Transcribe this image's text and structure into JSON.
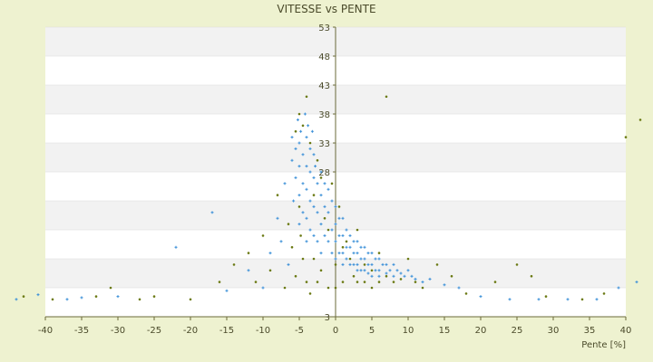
{
  "chart_data": {
    "type": "scatter",
    "title": "VITESSE vs PENTE",
    "xlabel": "Pente [%]",
    "ylabel": "",
    "xlim": [
      -40,
      40
    ],
    "ylim": [
      3,
      53
    ],
    "x_ticks": [
      -40,
      -35,
      -30,
      -25,
      -20,
      -15,
      -10,
      -5,
      0,
      5,
      10,
      15,
      20,
      25,
      30,
      35,
      40
    ],
    "y_ticks": [
      3,
      8,
      13,
      18,
      23,
      28,
      33,
      38,
      43,
      48,
      53
    ],
    "y_tick_labels_shown": [
      3,
      28,
      33,
      38,
      43,
      48,
      53
    ],
    "grid": "horizontal alternating bands",
    "series": [
      {
        "color": "#3a8fd8",
        "marker": "cross",
        "values": [
          [
            -44,
            6
          ],
          [
            -41,
            6.8
          ],
          [
            -37,
            6
          ],
          [
            -35,
            6.3
          ],
          [
            -30,
            6.5
          ],
          [
            -22,
            15
          ],
          [
            -17,
            21
          ],
          [
            -15,
            7.5
          ],
          [
            -12,
            11
          ],
          [
            -10,
            8
          ],
          [
            -9,
            14
          ],
          [
            -8,
            20
          ],
          [
            -7.5,
            16
          ],
          [
            -7,
            26
          ],
          [
            -6.5,
            12
          ],
          [
            -6,
            30
          ],
          [
            -6,
            34
          ],
          [
            -5.8,
            23
          ],
          [
            -5.5,
            32
          ],
          [
            -5.5,
            27
          ],
          [
            -5.2,
            37
          ],
          [
            -5,
            33
          ],
          [
            -5,
            29
          ],
          [
            -5,
            24
          ],
          [
            -5,
            19
          ],
          [
            -4.8,
            35
          ],
          [
            -4.5,
            31
          ],
          [
            -4.5,
            26
          ],
          [
            -4.5,
            21
          ],
          [
            -4.2,
            38
          ],
          [
            -4,
            34
          ],
          [
            -4,
            29
          ],
          [
            -4,
            25
          ],
          [
            -4,
            20
          ],
          [
            -4,
            16
          ],
          [
            -3.8,
            36
          ],
          [
            -3.5,
            32
          ],
          [
            -3.5,
            28
          ],
          [
            -3.5,
            23
          ],
          [
            -3.5,
            18
          ],
          [
            -3.2,
            35
          ],
          [
            -3,
            31
          ],
          [
            -3,
            27
          ],
          [
            -3,
            22
          ],
          [
            -3,
            17
          ],
          [
            -2.8,
            29
          ],
          [
            -2.5,
            26
          ],
          [
            -2.5,
            21
          ],
          [
            -2.5,
            16
          ],
          [
            -2,
            28
          ],
          [
            -2,
            24
          ],
          [
            -2,
            19
          ],
          [
            -2,
            14
          ],
          [
            -1.5,
            26
          ],
          [
            -1.5,
            22
          ],
          [
            -1.5,
            17
          ],
          [
            -1,
            25
          ],
          [
            -1,
            21
          ],
          [
            -1,
            16
          ],
          [
            -0.5,
            23
          ],
          [
            -0.5,
            18
          ],
          [
            -0.5,
            14
          ],
          [
            0,
            22
          ],
          [
            0,
            19
          ],
          [
            0,
            16
          ],
          [
            0,
            13
          ],
          [
            0.5,
            20
          ],
          [
            0.5,
            17
          ],
          [
            0.5,
            14
          ],
          [
            1,
            20
          ],
          [
            1,
            17
          ],
          [
            1,
            14
          ],
          [
            1,
            12
          ],
          [
            1.5,
            18
          ],
          [
            1.5,
            15
          ],
          [
            1.5,
            13
          ],
          [
            2,
            17
          ],
          [
            2,
            15
          ],
          [
            2,
            12
          ],
          [
            2.5,
            16
          ],
          [
            2.5,
            14
          ],
          [
            2.5,
            12
          ],
          [
            3,
            16
          ],
          [
            3,
            14
          ],
          [
            3,
            12
          ],
          [
            3,
            11
          ],
          [
            3.5,
            15
          ],
          [
            3.5,
            13
          ],
          [
            3.5,
            11
          ],
          [
            4,
            15
          ],
          [
            4,
            13
          ],
          [
            4,
            11
          ],
          [
            4.5,
            14
          ],
          [
            4.5,
            12
          ],
          [
            4.5,
            10.5
          ],
          [
            5,
            14
          ],
          [
            5,
            12
          ],
          [
            5,
            10
          ],
          [
            5.5,
            13
          ],
          [
            5.5,
            11
          ],
          [
            6,
            13
          ],
          [
            6,
            11
          ],
          [
            6,
            10
          ],
          [
            6.5,
            12
          ],
          [
            7,
            12
          ],
          [
            7,
            10.5
          ],
          [
            7.5,
            11
          ],
          [
            8,
            12
          ],
          [
            8,
            10
          ],
          [
            8.5,
            11
          ],
          [
            9,
            10.5
          ],
          [
            9.5,
            10
          ],
          [
            10,
            11
          ],
          [
            10.5,
            10
          ],
          [
            11,
            9.5
          ],
          [
            12,
            9
          ],
          [
            13,
            9.5
          ],
          [
            15,
            8.5
          ],
          [
            17,
            8
          ],
          [
            20,
            6.5
          ],
          [
            24,
            6
          ],
          [
            28,
            6
          ],
          [
            32,
            6
          ],
          [
            36,
            6
          ],
          [
            39,
            8
          ],
          [
            41.5,
            9
          ]
        ]
      },
      {
        "color": "#6b7a14",
        "marker": "dot",
        "values": [
          [
            -43,
            6.5
          ],
          [
            -39,
            6
          ],
          [
            -33,
            6.5
          ],
          [
            -31,
            8
          ],
          [
            -27,
            6
          ],
          [
            -25,
            6.5
          ],
          [
            -20,
            6
          ],
          [
            -16,
            9
          ],
          [
            -14,
            12
          ],
          [
            -12,
            14
          ],
          [
            -11,
            9
          ],
          [
            -10,
            17
          ],
          [
            -9,
            11
          ],
          [
            -8,
            24
          ],
          [
            -7,
            8
          ],
          [
            -6.5,
            19
          ],
          [
            -6,
            15
          ],
          [
            -5.5,
            35
          ],
          [
            -5.5,
            10
          ],
          [
            -5,
            38
          ],
          [
            -5,
            22
          ],
          [
            -4.8,
            17
          ],
          [
            -4.5,
            36
          ],
          [
            -4.5,
            13
          ],
          [
            -4,
            41
          ],
          [
            -4,
            9
          ],
          [
            -3.5,
            33
          ],
          [
            -3.5,
            7
          ],
          [
            -3,
            24
          ],
          [
            -3,
            13
          ],
          [
            -2.5,
            30
          ],
          [
            -2.5,
            9
          ],
          [
            -2,
            27
          ],
          [
            -2,
            11
          ],
          [
            -1.5,
            20
          ],
          [
            -1,
            18
          ],
          [
            -1,
            8
          ],
          [
            -0.5,
            26
          ],
          [
            0,
            12
          ],
          [
            0,
            8
          ],
          [
            0.5,
            22
          ],
          [
            1,
            15
          ],
          [
            1,
            9
          ],
          [
            1.5,
            16
          ],
          [
            2,
            13
          ],
          [
            2.5,
            10
          ],
          [
            3,
            18
          ],
          [
            3,
            9
          ],
          [
            4,
            12
          ],
          [
            4,
            9
          ],
          [
            5,
            11
          ],
          [
            5,
            8
          ],
          [
            6,
            14
          ],
          [
            6,
            9
          ],
          [
            7,
            41
          ],
          [
            7,
            10
          ],
          [
            8,
            9
          ],
          [
            9,
            9.5
          ],
          [
            10,
            13
          ],
          [
            11,
            9
          ],
          [
            12,
            8
          ],
          [
            14,
            12
          ],
          [
            16,
            10
          ],
          [
            18,
            7
          ],
          [
            22,
            9
          ],
          [
            25,
            12
          ],
          [
            27,
            10
          ],
          [
            29,
            6.5
          ],
          [
            34,
            6
          ],
          [
            37,
            7
          ],
          [
            40,
            34
          ],
          [
            42,
            37
          ]
        ]
      }
    ]
  }
}
